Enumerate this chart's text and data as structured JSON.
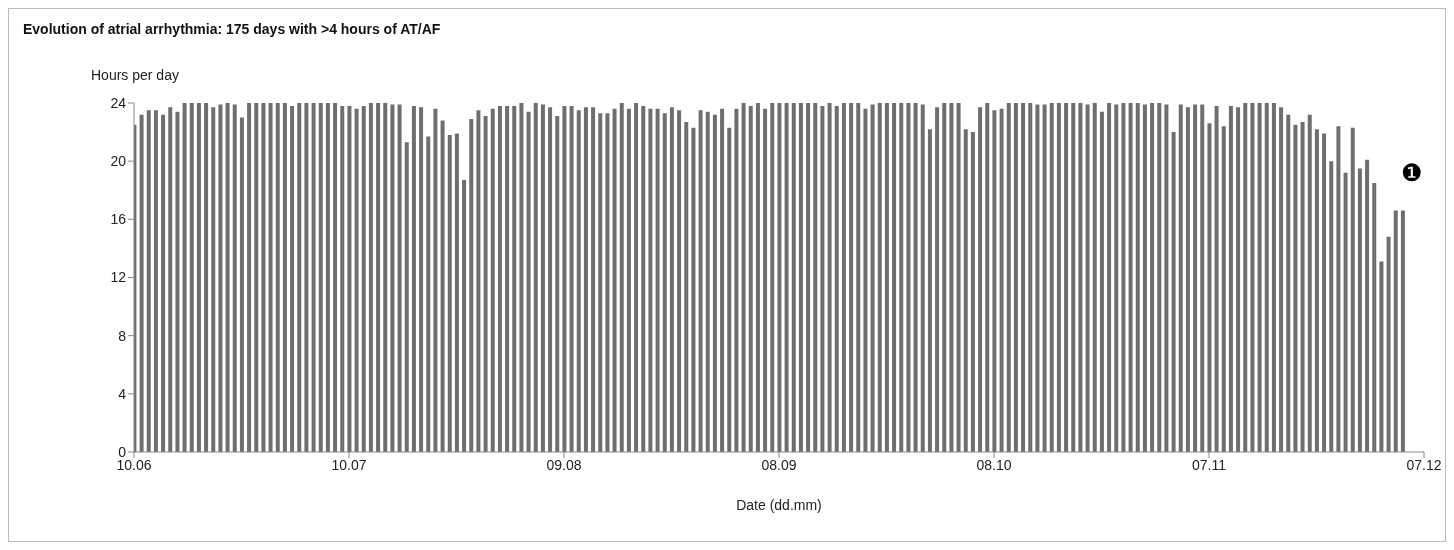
{
  "chart_data": {
    "type": "bar",
    "title": "Evolution of atrial arrhythmia: 175 days with >4 hours of AT/AF",
    "ylabel": "Hours per day",
    "xlabel": "Date (dd.mm)",
    "annotations": [
      "❶"
    ],
    "color": "#6e6e6e",
    "x": [
      "--06-10",
      "--06-11",
      "--06-12",
      "--06-13",
      "--06-14",
      "--06-15",
      "--06-16",
      "--06-17",
      "--06-18",
      "--06-19",
      "--06-20",
      "--06-21",
      "--06-22",
      "--06-23",
      "--06-24",
      "--06-25",
      "--06-26",
      "--06-27",
      "--06-28",
      "--06-29",
      "--06-30",
      "--07-01",
      "--07-02",
      "--07-03",
      "--07-04",
      "--07-05",
      "--07-06",
      "--07-07",
      "--07-08",
      "--07-09",
      "--07-10",
      "--07-11",
      "--07-12",
      "--07-13",
      "--07-14",
      "--07-15",
      "--07-16",
      "--07-17",
      "--07-18",
      "--07-19",
      "--07-20",
      "--07-21",
      "--07-22",
      "--07-23",
      "--07-24",
      "--07-25",
      "--07-26",
      "--07-27",
      "--07-28",
      "--07-29",
      "--07-30",
      "--07-31",
      "--08-01",
      "--08-02",
      "--08-03",
      "--08-04",
      "--08-05",
      "--08-06",
      "--08-07",
      "--08-08",
      "--08-09",
      "--08-10",
      "--08-11",
      "--08-12",
      "--08-13",
      "--08-14",
      "--08-15",
      "--08-16",
      "--08-17",
      "--08-18",
      "--08-19",
      "--08-20",
      "--08-21",
      "--08-22",
      "--08-23",
      "--08-24",
      "--08-25",
      "--08-26",
      "--08-27",
      "--08-28",
      "--08-29",
      "--08-30",
      "--08-31",
      "--09-01",
      "--09-02",
      "--09-03",
      "--09-04",
      "--09-05",
      "--09-06",
      "--09-07",
      "--09-08",
      "--09-09",
      "--09-10",
      "--09-11",
      "--09-12",
      "--09-13",
      "--09-14",
      "--09-15",
      "--09-16",
      "--09-17",
      "--09-18",
      "--09-19",
      "--09-20",
      "--09-21",
      "--09-22",
      "--09-23",
      "--09-24",
      "--09-25",
      "--09-26",
      "--09-27",
      "--09-28",
      "--09-29",
      "--09-30",
      "--10-01",
      "--10-02",
      "--10-03",
      "--10-04",
      "--10-05",
      "--10-06",
      "--10-07",
      "--10-08",
      "--10-09",
      "--10-10",
      "--10-11",
      "--10-12",
      "--10-13",
      "--10-14",
      "--10-15",
      "--10-16",
      "--10-17",
      "--10-18",
      "--10-19",
      "--10-20",
      "--10-21",
      "--10-22",
      "--10-23",
      "--10-24",
      "--10-25",
      "--10-26",
      "--10-27",
      "--10-28",
      "--10-29",
      "--10-30",
      "--10-31",
      "--11-01",
      "--11-02",
      "--11-03",
      "--11-04",
      "--11-05",
      "--11-06",
      "--11-07",
      "--11-08",
      "--11-09",
      "--11-10",
      "--11-11",
      "--11-12",
      "--11-13",
      "--11-14",
      "--11-15",
      "--11-16",
      "--11-17",
      "--11-18",
      "--11-19",
      "--11-20",
      "--11-21",
      "--11-22",
      "--11-23",
      "--11-24",
      "--11-25",
      "--11-26",
      "--11-27",
      "--11-28",
      "--11-29",
      "--11-30",
      "--12-01",
      "--12-02",
      "--12-03",
      "--12-04"
    ],
    "values": [
      22.5,
      23.2,
      23.5,
      23.5,
      23.2,
      23.7,
      23.4,
      24,
      24,
      24,
      24,
      23.7,
      23.9,
      24,
      23.9,
      23.0,
      24,
      24,
      24,
      24,
      24,
      24,
      23.8,
      24,
      24,
      24,
      24,
      24,
      24,
      23.8,
      23.8,
      23.6,
      23.8,
      24,
      24,
      24,
      23.9,
      23.9,
      21.3,
      23.8,
      23.7,
      21.7,
      23.6,
      22.8,
      21.8,
      21.9,
      18.7,
      22.9,
      23.5,
      23.1,
      23.6,
      23.8,
      23.8,
      23.8,
      24,
      23.4,
      24,
      23.9,
      23.7,
      23.1,
      23.8,
      23.8,
      23.5,
      23.7,
      23.7,
      23.3,
      23.3,
      23.6,
      24,
      23.6,
      24,
      23.8,
      23.6,
      23.6,
      23.3,
      23.7,
      23.5,
      22.7,
      22.3,
      23.5,
      23.4,
      23.2,
      23.6,
      22.3,
      23.6,
      24,
      23.8,
      24,
      23.6,
      24,
      24,
      24,
      24,
      24,
      24,
      24,
      23.8,
      24,
      23.8,
      24,
      24,
      24,
      23.6,
      23.9,
      24,
      24,
      24,
      24,
      24,
      24,
      23.9,
      22.2,
      23.7,
      24,
      24,
      24,
      22.2,
      22.0,
      23.7,
      24,
      23.5,
      23.6,
      24,
      24,
      24,
      24,
      23.9,
      23.9,
      24,
      24,
      24,
      24,
      24,
      23.9,
      24,
      23.4,
      24,
      23.9,
      24,
      24,
      24,
      23.9,
      24,
      24,
      23.9,
      22.0,
      23.9,
      23.7,
      23.9,
      23.9,
      22.6,
      23.8,
      22.4,
      23.8,
      23.7,
      24,
      24,
      24,
      24,
      24,
      23.7,
      23.2,
      22.5,
      22.7,
      23.2,
      22.2,
      21.9,
      20.0,
      22.4,
      19.2,
      22.3,
      19.5,
      20.1,
      18.5,
      13.1,
      14.8,
      16.6,
      16.6
    ],
    "xlim": [
      "--06-10",
      "--12-07"
    ],
    "xticks": [
      {
        "value": "--06-10",
        "label": "10.06"
      },
      {
        "value": "--07-10",
        "label": "10.07"
      },
      {
        "value": "--08-09",
        "label": "09.08"
      },
      {
        "value": "--09-08",
        "label": "08.09"
      },
      {
        "value": "--10-08",
        "label": "08.10"
      },
      {
        "value": "--11-07",
        "label": "07.11"
      },
      {
        "value": "--12-07",
        "label": "07.12"
      }
    ],
    "ylim": [
      0,
      24
    ],
    "yticks": [
      0,
      4,
      8,
      12,
      16,
      20,
      24
    ]
  }
}
